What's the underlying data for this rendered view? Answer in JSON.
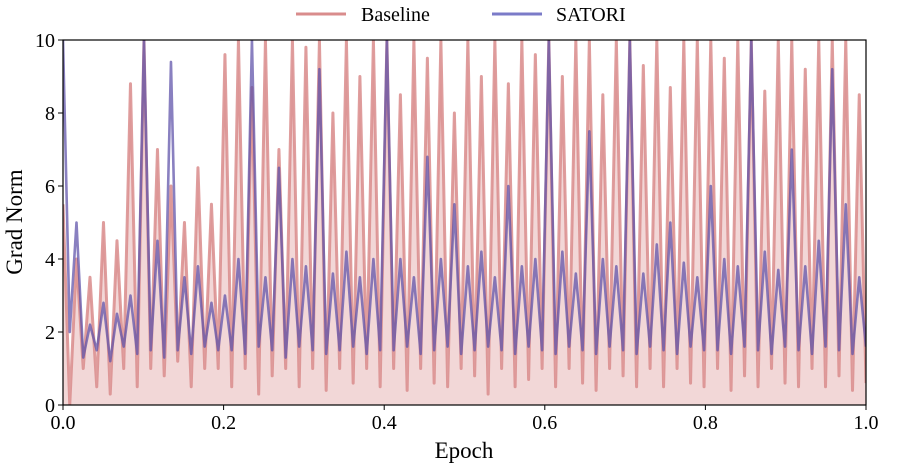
{
  "chart_data": {
    "type": "line",
    "title": "",
    "xlabel": "Epoch",
    "ylabel": "Grad Norm",
    "xlim": [
      0,
      1
    ],
    "ylim": [
      0,
      10
    ],
    "xticks": [
      "0.0",
      "0.2",
      "0.4",
      "0.6",
      "0.8",
      "1.0"
    ],
    "yticks": [
      "0",
      "2",
      "4",
      "6",
      "8",
      "10"
    ],
    "grid": false,
    "legend_position": "top-center",
    "series": [
      {
        "name": "Baseline",
        "color": "#d98c8c",
        "values": [
          5.5,
          0,
          4,
          1,
          3.5,
          0.5,
          5,
          0.3,
          4.5,
          1,
          8.8,
          0.5,
          10,
          1,
          7,
          0.8,
          6,
          1.2,
          5,
          0.5,
          6.5,
          1,
          5.5,
          1,
          9.6,
          0.5,
          10,
          1,
          8.7,
          0.3,
          10,
          0.8,
          7,
          1,
          10,
          0.5,
          9.8,
          1,
          10,
          0.4,
          8,
          1,
          10,
          0.6,
          9,
          1,
          10,
          0.5,
          10,
          1,
          8.5,
          0.4,
          10,
          1,
          9.5,
          0.6,
          10,
          0.5,
          8,
          1,
          10,
          0.8,
          9,
          0.3,
          10,
          1,
          8.8,
          0.5,
          10,
          0.7,
          9.6,
          1,
          10,
          0.5,
          9,
          1,
          10,
          0.6,
          10,
          0.4,
          8.5,
          1,
          10,
          0.8,
          10,
          0.5,
          9.3,
          1,
          10,
          0.5,
          8.7,
          1,
          10,
          0.6,
          10,
          0.5,
          10,
          1,
          9.5,
          0.4,
          10,
          0.8,
          10,
          0.5,
          8.6,
          1,
          10,
          0.6,
          10,
          0.5,
          9.2,
          1,
          10,
          0.5,
          10,
          0.8,
          10,
          0.4,
          8.5,
          0.6
        ]
      },
      {
        "name": "SATORI",
        "color": "#6f6fc0",
        "values": [
          10,
          2,
          5,
          1.3,
          2.2,
          1.5,
          2.8,
          1.2,
          2.5,
          1.6,
          3,
          1.4,
          10,
          1.5,
          4.5,
          1.3,
          9.4,
          1.5,
          3.5,
          1.4,
          3.8,
          1.6,
          2.8,
          1.5,
          3,
          1.5,
          4,
          1.4,
          10,
          1.6,
          3.5,
          1.5,
          6.5,
          1.3,
          4,
          1.6,
          3.8,
          1.5,
          9.2,
          1.4,
          3.6,
          1.5,
          4.2,
          1.6,
          3.5,
          1.4,
          4,
          1.5,
          10,
          1.5,
          4,
          1.6,
          3.5,
          1.4,
          6.8,
          1.5,
          4,
          1.6,
          5.5,
          1.4,
          3.8,
          1.5,
          4.2,
          1.6,
          3.5,
          1.5,
          6,
          1.4,
          3.8,
          1.6,
          4,
          1.5,
          10,
          1.4,
          4.2,
          1.6,
          3.6,
          1.5,
          7.5,
          1.4,
          4,
          1.6,
          3.8,
          1.5,
          10,
          1.4,
          3.6,
          1.6,
          4.4,
          1.5,
          5,
          1.4,
          3.9,
          1.6,
          3.5,
          1.5,
          6,
          1.5,
          4,
          1.4,
          3.8,
          1.6,
          10,
          1.5,
          4.2,
          1.4,
          3.7,
          1.6,
          7,
          1.5,
          3.8,
          1.4,
          4.5,
          1.6,
          9.2,
          1.5,
          5.5,
          1.4,
          3.5,
          1.6
        ]
      }
    ]
  }
}
